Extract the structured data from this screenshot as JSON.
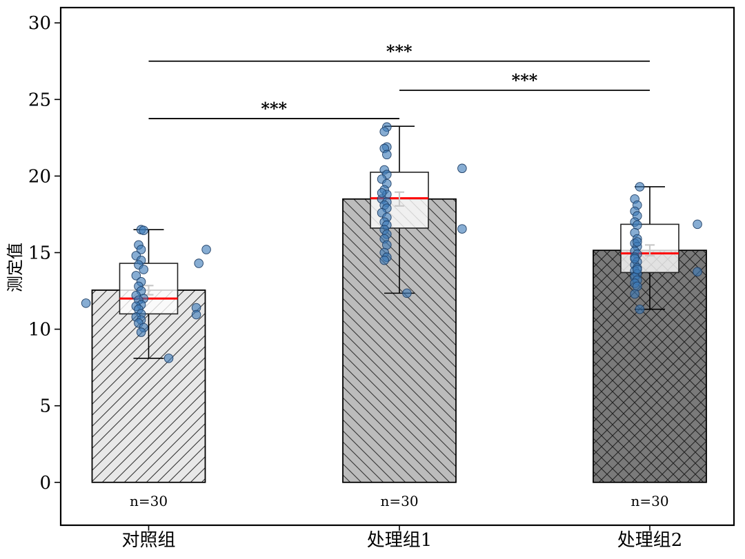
{
  "chart_data": {
    "type": "bar",
    "ylabel": "测定值",
    "xlabel": "",
    "ylim": [
      -2.8,
      31
    ],
    "yticks": [
      0,
      5,
      10,
      15,
      20,
      25,
      30
    ],
    "categories": [
      "对照组",
      "处理组1",
      "处理组2"
    ],
    "n_labels": [
      "n=30",
      "n=30",
      "n=30"
    ],
    "bar_fills": [
      "#e8e8e8",
      "#bcbcbc",
      "#7a7a7a"
    ],
    "bar_hatches": [
      "fwd",
      "back",
      "cross"
    ],
    "point_color": "#3d7ab8",
    "median_color": "#ff0000",
    "means": [
      12.55,
      18.5,
      15.15
    ],
    "sem": [
      0.3,
      0.45,
      0.35
    ],
    "boxes": [
      {
        "q1": 11.0,
        "median": 12.0,
        "q3": 14.3,
        "whisker_low": 8.1,
        "whisker_high": 16.5
      },
      {
        "q1": 16.6,
        "median": 18.55,
        "q3": 20.25,
        "whisker_low": 12.35,
        "whisker_high": 23.25
      },
      {
        "q1": 13.7,
        "median": 14.95,
        "q3": 16.85,
        "whisker_low": 11.3,
        "whisker_high": 19.3
      }
    ],
    "points": [
      [
        {
          "dx": -0.03,
          "y": 16.5
        },
        {
          "dx": -0.02,
          "y": 16.45
        },
        {
          "dx": -0.04,
          "y": 15.5
        },
        {
          "dx": -0.03,
          "y": 15.2
        },
        {
          "dx": 0.23,
          "y": 15.2
        },
        {
          "dx": -0.05,
          "y": 14.8
        },
        {
          "dx": -0.03,
          "y": 14.5
        },
        {
          "dx": 0.2,
          "y": 14.3
        },
        {
          "dx": -0.04,
          "y": 14.2
        },
        {
          "dx": -0.02,
          "y": 13.9
        },
        {
          "dx": -0.05,
          "y": 13.5
        },
        {
          "dx": -0.03,
          "y": 13.1
        },
        {
          "dx": -0.04,
          "y": 12.8
        },
        {
          "dx": -0.03,
          "y": 12.5
        },
        {
          "dx": -0.05,
          "y": 12.2
        },
        {
          "dx": -0.02,
          "y": 12.0
        },
        {
          "dx": -0.04,
          "y": 11.9
        },
        {
          "dx": -0.03,
          "y": 11.6
        },
        {
          "dx": -0.05,
          "y": 11.5
        },
        {
          "dx": -0.04,
          "y": 11.3
        },
        {
          "dx": -0.03,
          "y": 11.0
        },
        {
          "dx": -0.05,
          "y": 10.8
        },
        {
          "dx": -0.03,
          "y": 10.6
        },
        {
          "dx": -0.04,
          "y": 10.4
        },
        {
          "dx": -0.02,
          "y": 10.1
        },
        {
          "dx": -0.03,
          "y": 9.8
        },
        {
          "dx": 0.19,
          "y": 11.4
        },
        {
          "dx": 0.19,
          "y": 10.95
        },
        {
          "dx": -0.25,
          "y": 11.7
        },
        {
          "dx": 0.08,
          "y": 8.1
        }
      ],
      [
        {
          "dx": -0.05,
          "y": 23.2
        },
        {
          "dx": -0.06,
          "y": 22.9
        },
        {
          "dx": -0.05,
          "y": 21.9
        },
        {
          "dx": -0.06,
          "y": 21.8
        },
        {
          "dx": -0.05,
          "y": 21.4
        },
        {
          "dx": 0.25,
          "y": 20.5
        },
        {
          "dx": -0.06,
          "y": 20.4
        },
        {
          "dx": -0.05,
          "y": 20.1
        },
        {
          "dx": -0.07,
          "y": 19.8
        },
        {
          "dx": -0.05,
          "y": 19.5
        },
        {
          "dx": -0.06,
          "y": 19.1
        },
        {
          "dx": -0.05,
          "y": 18.8
        },
        {
          "dx": -0.07,
          "y": 18.5
        },
        {
          "dx": -0.05,
          "y": 18.3
        },
        {
          "dx": -0.06,
          "y": 18.1
        },
        {
          "dx": -0.05,
          "y": 17.9
        },
        {
          "dx": -0.07,
          "y": 17.6
        },
        {
          "dx": -0.05,
          "y": 17.3
        },
        {
          "dx": -0.06,
          "y": 17.0
        },
        {
          "dx": -0.05,
          "y": 16.8
        },
        {
          "dx": 0.25,
          "y": 16.55
        },
        {
          "dx": -0.06,
          "y": 16.5
        },
        {
          "dx": -0.05,
          "y": 16.2
        },
        {
          "dx": -0.06,
          "y": 15.9
        },
        {
          "dx": -0.05,
          "y": 15.5
        },
        {
          "dx": -0.06,
          "y": 15.0
        },
        {
          "dx": -0.05,
          "y": 14.7
        },
        {
          "dx": -0.06,
          "y": 14.5
        },
        {
          "dx": 0.03,
          "y": 12.35
        },
        {
          "dx": -0.07,
          "y": 18.9
        }
      ],
      [
        {
          "dx": -0.04,
          "y": 19.3
        },
        {
          "dx": -0.06,
          "y": 18.5
        },
        {
          "dx": -0.05,
          "y": 18.1
        },
        {
          "dx": -0.06,
          "y": 17.7
        },
        {
          "dx": -0.05,
          "y": 17.4
        },
        {
          "dx": -0.06,
          "y": 17.0
        },
        {
          "dx": 0.19,
          "y": 16.85
        },
        {
          "dx": -0.05,
          "y": 16.8
        },
        {
          "dx": -0.06,
          "y": 16.3
        },
        {
          "dx": -0.05,
          "y": 15.9
        },
        {
          "dx": -0.06,
          "y": 15.6
        },
        {
          "dx": -0.05,
          "y": 15.4
        },
        {
          "dx": -0.06,
          "y": 15.1
        },
        {
          "dx": -0.05,
          "y": 14.9
        },
        {
          "dx": -0.06,
          "y": 14.7
        },
        {
          "dx": -0.05,
          "y": 14.4
        },
        {
          "dx": -0.06,
          "y": 14.2
        },
        {
          "dx": -0.05,
          "y": 14.0
        },
        {
          "dx": -0.06,
          "y": 13.8
        },
        {
          "dx": -0.05,
          "y": 13.6
        },
        {
          "dx": -0.06,
          "y": 13.4
        },
        {
          "dx": -0.05,
          "y": 13.2
        },
        {
          "dx": -0.06,
          "y": 13.0
        },
        {
          "dx": -0.05,
          "y": 12.8
        },
        {
          "dx": -0.06,
          "y": 12.3
        },
        {
          "dx": 0.19,
          "y": 13.75
        },
        {
          "dx": -0.04,
          "y": 11.3
        },
        {
          "dx": -0.05,
          "y": 15.7
        },
        {
          "dx": -0.06,
          "y": 14.6
        },
        {
          "dx": -0.05,
          "y": 13.9
        }
      ]
    ],
    "significance": [
      {
        "from": 0,
        "to": 1,
        "y": 23.75,
        "label": "***"
      },
      {
        "from": 1,
        "to": 2,
        "y": 25.6,
        "label": "***"
      },
      {
        "from": 0,
        "to": 2,
        "y": 27.5,
        "label": "***"
      }
    ]
  }
}
